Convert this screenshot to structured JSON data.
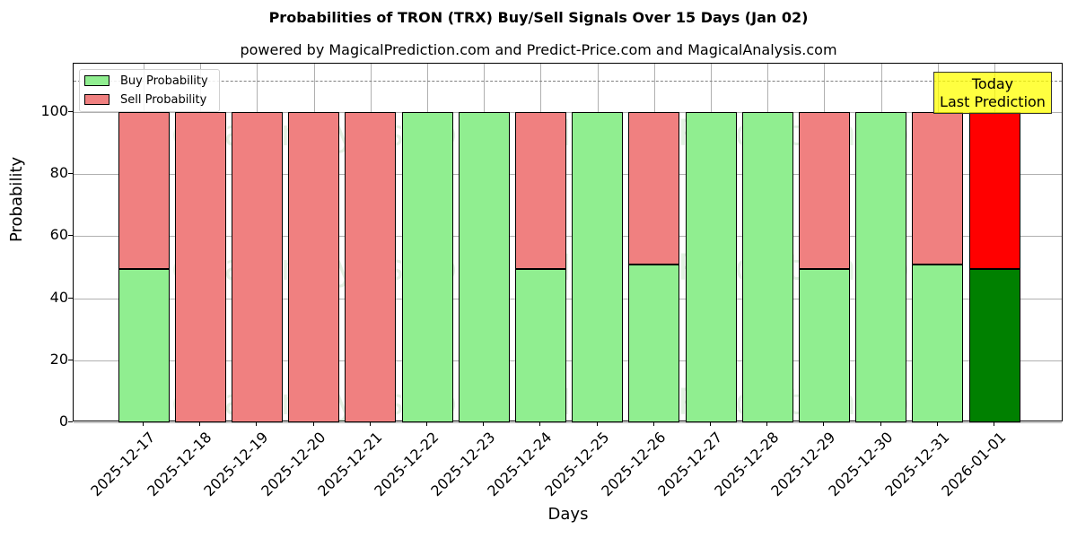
{
  "chart_data": {
    "type": "bar",
    "stacked": true,
    "title": "Probabilities of TRON (TRX) Buy/Sell Signals Over 15 Days (Jan 02)",
    "subtitle": "powered by MagicalPrediction.com and Predict-Price.com and MagicalAnalysis.com",
    "xlabel": "Days",
    "ylabel": "Probability",
    "ylim": [
      0,
      115
    ],
    "yticks": [
      0,
      20,
      40,
      60,
      80,
      100
    ],
    "grid": true,
    "legend_position": "upper left",
    "reference_line": {
      "y": 110,
      "style": "dashed",
      "color": "#808080"
    },
    "categories": [
      "2025-12-17",
      "2025-12-18",
      "2025-12-19",
      "2025-12-20",
      "2025-12-21",
      "2025-12-22",
      "2025-12-23",
      "2025-12-24",
      "2025-12-25",
      "2025-12-26",
      "2025-12-27",
      "2025-12-28",
      "2025-12-29",
      "2025-12-30",
      "2025-12-31",
      "2026-01-01"
    ],
    "series": [
      {
        "name": "Buy Probability",
        "color": "#90ee90",
        "values": [
          49.4,
          0,
          0,
          0,
          0,
          100,
          100,
          49.4,
          100,
          50.9,
          100,
          100,
          49.4,
          100,
          50.9,
          49.4
        ]
      },
      {
        "name": "Sell Probability",
        "color": "#f08080",
        "values": [
          50.6,
          100,
          100,
          100,
          100,
          0,
          0,
          50.6,
          0,
          49.1,
          0,
          0,
          50.6,
          0,
          49.1,
          50.6
        ]
      }
    ],
    "highlight": {
      "index": 15,
      "buy_color": "#008000",
      "sell_color": "#ff0000"
    },
    "annotation": {
      "line1": "Today",
      "line2": "Last Prediction",
      "background": "#ffff00"
    },
    "watermarks": [
      "MagicalAnalysis.com",
      "MagicalPrediction.com"
    ]
  }
}
